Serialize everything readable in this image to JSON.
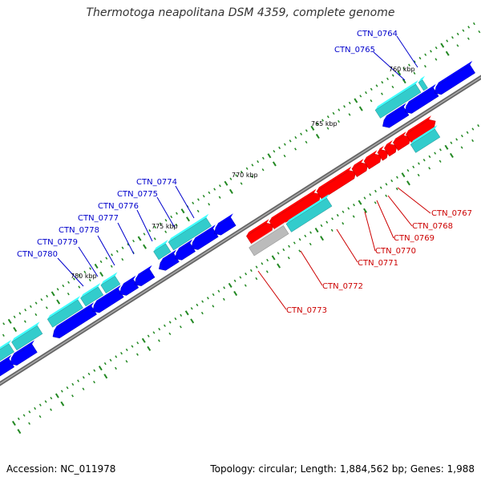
{
  "title": "Thermotoga neapolitana DSM 4359, complete genome",
  "accession": "Accession: NC_011978",
  "topology": "Topology: circular; Length: 1,884,562 bp; Genes: 1,988",
  "kbp_labels": [
    "760 kbp",
    "765 kbp",
    "770 kbp",
    "775 kbp",
    "780 kbp"
  ],
  "gene_labels": [
    {
      "text": "CTN_0764",
      "color": "#0000cc"
    },
    {
      "text": "CTN_0765",
      "color": "#0000cc"
    },
    {
      "text": "CTN_0767",
      "color": "#cc0000"
    },
    {
      "text": "CTN_0768",
      "color": "#cc0000"
    },
    {
      "text": "CTN_0769",
      "color": "#cc0000"
    },
    {
      "text": "CTN_0770",
      "color": "#cc0000"
    },
    {
      "text": "CTN_0771",
      "color": "#cc0000"
    },
    {
      "text": "CTN_0772",
      "color": "#cc0000"
    },
    {
      "text": "CTN_0773",
      "color": "#cc0000"
    },
    {
      "text": "CTN_0774",
      "color": "#0000cc"
    },
    {
      "text": "CTN_0775",
      "color": "#0000cc"
    },
    {
      "text": "CTN_0776",
      "color": "#0000cc"
    },
    {
      "text": "CTN_0777",
      "color": "#0000cc"
    },
    {
      "text": "CTN_0778",
      "color": "#0000cc"
    },
    {
      "text": "CTN_0779",
      "color": "#0000cc"
    },
    {
      "text": "CTN_0780",
      "color": "#0000cc"
    }
  ],
  "colors": {
    "forward_cds": "#0000ff",
    "reverse_cds": "#ff0000",
    "forward_rna": "#33cccc",
    "reverse_rna": "#33cccc",
    "other": "#bbbbbb",
    "backbone": "#777777",
    "tick": "#228822"
  }
}
